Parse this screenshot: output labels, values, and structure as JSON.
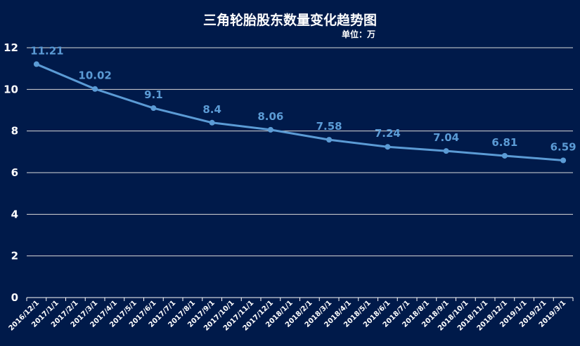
{
  "chart_data": {
    "type": "line",
    "title": "三角轮胎股东数量变化趋势图",
    "subtitle": "单位：万",
    "ylim": [
      0,
      12
    ],
    "yticks": [
      0,
      2,
      4,
      6,
      8,
      10,
      12
    ],
    "categories": [
      "2016/12/1",
      "2017/1/1",
      "2017/2/1",
      "2017/3/1",
      "2017/4/1",
      "2017/5/1",
      "2017/6/1",
      "2017/7/1",
      "2017/8/1",
      "2017/9/1",
      "2017/10/1",
      "2017/11/1",
      "2017/12/1",
      "2018/1/1",
      "2018/2/1",
      "2018/3/1",
      "2018/4/1",
      "2018/5/1",
      "2018/6/1",
      "2018/7/1",
      "2018/8/1",
      "2018/9/1",
      "2018/10/1",
      "2018/11/1",
      "2018/12/1",
      "2019/1/1",
      "2019/2/1",
      "2019/3/1"
    ],
    "series": [
      {
        "x": [
          "2016/12/1",
          "2017/3/1",
          "2017/6/1",
          "2017/9/1",
          "2017/12/1",
          "2018/3/1",
          "2018/6/1",
          "2018/9/1",
          "2018/12/1",
          "2019/3/1"
        ],
        "values": [
          11.21,
          10.02,
          9.1,
          8.4,
          8.06,
          7.58,
          7.24,
          7.04,
          6.81,
          6.59
        ],
        "labels": [
          "11.21",
          "10.02",
          "9.1",
          "8.4",
          "8.06",
          "7.58",
          "7.24",
          "7.04",
          "6.81",
          "6.59"
        ]
      }
    ],
    "grid": true,
    "colors": {
      "line": "#5b9bd5",
      "background": "#001a4a",
      "grid": "#d9d9d9"
    }
  }
}
